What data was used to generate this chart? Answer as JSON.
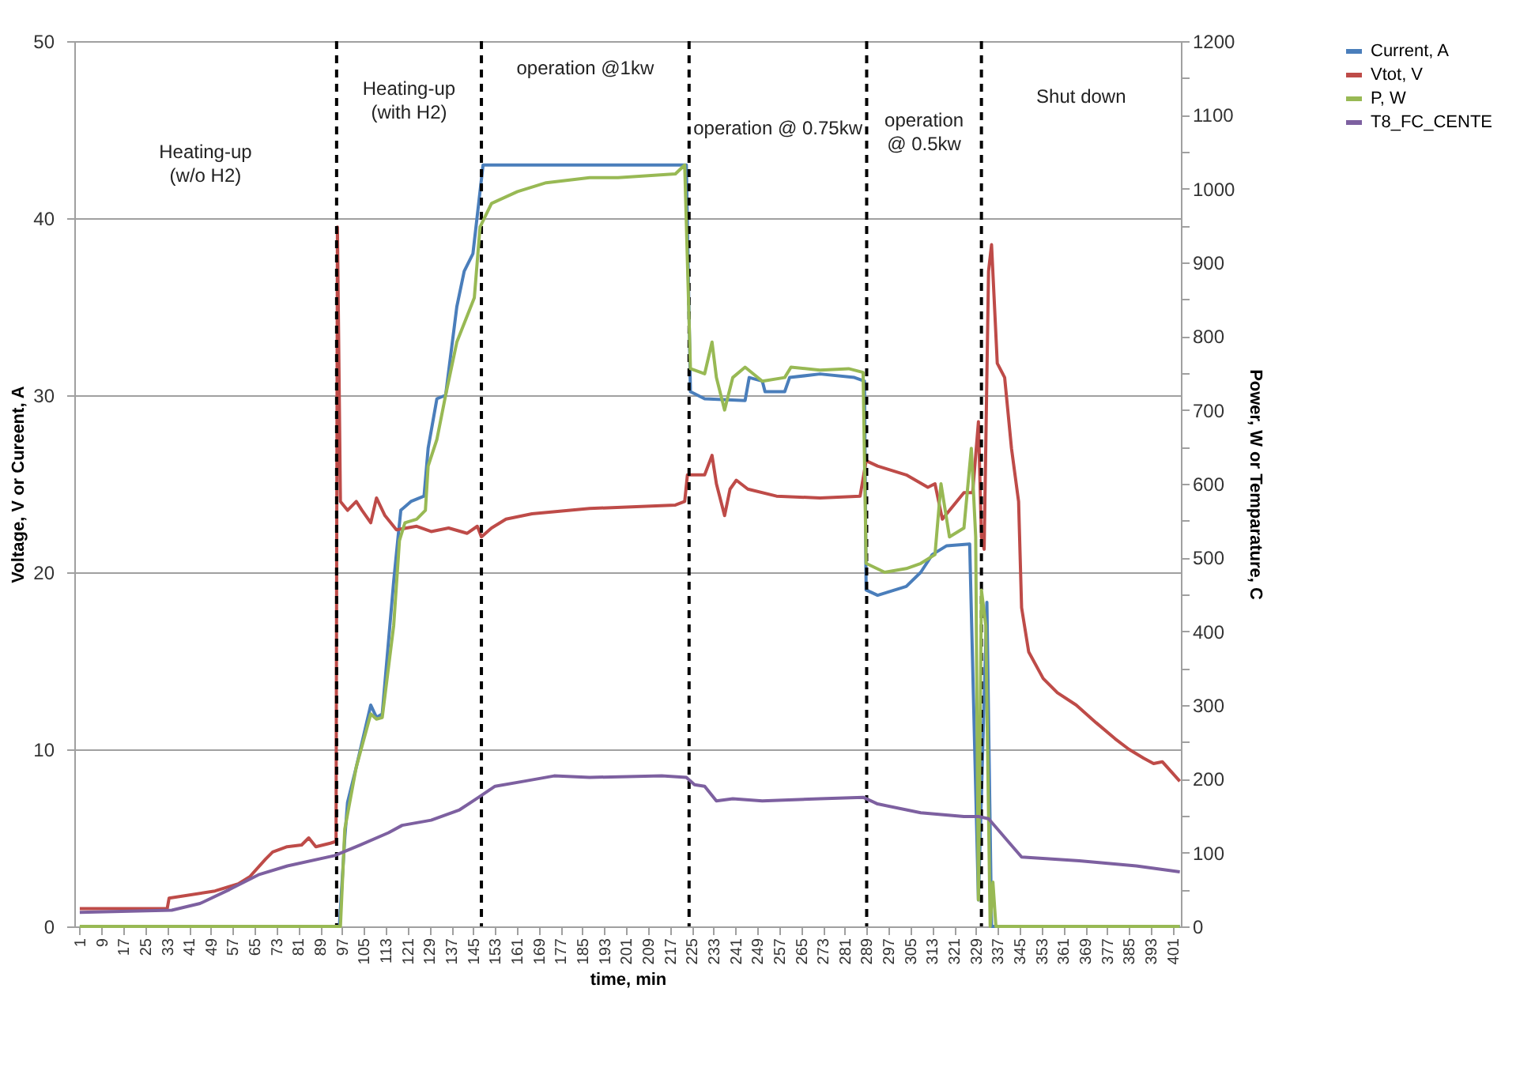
{
  "chart_data": {
    "type": "line",
    "xlabel": "time, min",
    "ylabel": "Voltage, V or Cureent, A",
    "y2label": "Power, W or Temparature, C",
    "xlim": [
      -1,
      404
    ],
    "xticks": [
      1,
      9,
      17,
      25,
      33,
      41,
      49,
      57,
      65,
      73,
      81,
      89,
      97,
      105,
      113,
      121,
      129,
      137,
      145,
      153,
      161,
      169,
      177,
      185,
      193,
      201,
      209,
      217,
      225,
      233,
      241,
      249,
      257,
      265,
      273,
      281,
      289,
      297,
      305,
      313,
      321,
      329,
      337,
      345,
      353,
      361,
      369,
      377,
      385,
      393,
      401
    ],
    "ylim": [
      0,
      50
    ],
    "yticks": [
      0,
      10,
      20,
      30,
      40,
      50
    ],
    "y2lim": [
      0,
      1200
    ],
    "y2ticks": [
      0,
      {
        "value": 50,
        "label": null
      },
      100,
      {
        "value": 150,
        "label": null
      },
      200,
      {
        "value": 250,
        "label": null
      },
      300,
      {
        "value": 350,
        "label": null
      },
      400,
      {
        "value": 450,
        "label": null
      },
      500,
      {
        "value": 550,
        "label": null
      },
      600,
      {
        "value": 650,
        "label": null
      },
      700,
      {
        "value": 750,
        "label": null
      },
      800,
      {
        "value": 850,
        "label": null
      },
      900,
      {
        "value": 950,
        "label": null
      },
      1000,
      {
        "value": 1050,
        "label": null
      },
      1100,
      {
        "value": 1150,
        "label": null
      },
      1200
    ],
    "grid": "y",
    "legend": "right",
    "line_style": "solid",
    "marker": "none",
    "series": [
      {
        "name": "Current, A",
        "color": "#4a7ebb",
        "x": [
          1,
          96,
          98,
          99,
          102.2,
          107.5,
          109.6,
          111.7,
          115.9,
          117.5,
          118.5,
          122.2,
          127,
          128.5,
          131.7,
          134.9,
          139,
          141.7,
          144.9,
          148.6,
          223,
          224.5,
          229.7,
          244.5,
          246,
          250.8,
          251.8,
          259,
          260.8,
          271.9,
          284.5,
          288.2,
          288.8,
          293,
          303.5,
          308.8,
          313,
          318.3,
          326.7,
          329.9,
          333,
          334.7,
          403.6
        ],
        "values": [
          0,
          0,
          5,
          7,
          9,
          12.5,
          11.8,
          12,
          19.5,
          22,
          23.5,
          24,
          24.3,
          27,
          29.8,
          30,
          35,
          37,
          38,
          43,
          43,
          30.2,
          29.8,
          29.7,
          31,
          30.8,
          30.2,
          30.2,
          31,
          31.2,
          31,
          30.8,
          19,
          18.7,
          19.2,
          20,
          21,
          21.5,
          21.6,
          1.5,
          18.3,
          0,
          0
        ]
      },
      {
        "name": "Vtot, V",
        "color": "#be4b48",
        "x": [
          1,
          33,
          33.7,
          50.5,
          59,
          63.2,
          69,
          71.6,
          76.9,
          82.2,
          84.8,
          87.4,
          92.7,
          94.8,
          95.3,
          96.4,
          99,
          102.2,
          104.3,
          107.5,
          109.6,
          112.7,
          114.8,
          116.9,
          124.3,
          129.6,
          136,
          142.8,
          146.5,
          148,
          151.7,
          157,
          166.5,
          187.6,
          219,
          222.4,
          223.4,
          229.7,
          232.4,
          234,
          237,
          239,
          241.3,
          245.5,
          256,
          271.9,
          286.6,
          288.8,
          293,
          303.5,
          311.4,
          314,
          316.7,
          324.6,
          327.8,
          329.9,
          331,
          332,
          333.6,
          334.7,
          336.8,
          339.5,
          342,
          344.6,
          345.7,
          348.3,
          353.6,
          358.8,
          365.7,
          373,
          379.9,
          385,
          390.4,
          394,
          397.2,
          403.6
        ],
        "values": [
          1,
          1,
          1.6,
          2,
          2.4,
          2.8,
          3.8,
          4.2,
          4.5,
          4.6,
          5,
          4.5,
          4.7,
          4.8,
          39.5,
          24,
          23.5,
          24,
          23.5,
          22.8,
          24.2,
          23.2,
          22.8,
          22.4,
          22.6,
          22.3,
          22.5,
          22.2,
          22.6,
          22,
          22.5,
          23,
          23.3,
          23.6,
          23.8,
          24,
          25.5,
          25.5,
          26.6,
          25,
          23.2,
          24.7,
          25.2,
          24.7,
          24.3,
          24.2,
          24.3,
          26.3,
          26,
          25.5,
          24.8,
          25,
          23,
          24.5,
          24.5,
          28.5,
          22,
          21.3,
          37,
          38.5,
          31.8,
          31,
          27,
          24,
          18,
          15.5,
          14,
          13.2,
          12.5,
          11.5,
          10.6,
          10,
          9.5,
          9.2,
          9.3,
          8.2
        ]
      },
      {
        "name": "P, W",
        "color": "#98b954",
        "axis": "y2",
        "x": [
          1,
          96.4,
          98,
          102.2,
          107.5,
          109.6,
          111.7,
          115.9,
          118,
          120,
          124.3,
          127.5,
          128.5,
          131.7,
          134.9,
          139,
          145.4,
          147.5,
          151.7,
          161.2,
          171.7,
          187.6,
          198,
          219,
          222.4,
          224.5,
          229.7,
          232.4,
          234,
          237,
          240,
          244.5,
          250.8,
          259,
          261.3,
          271.9,
          282.4,
          287.7,
          288.8,
          295.6,
          303.5,
          308.8,
          314,
          316.2,
          319.3,
          324.6,
          327.3,
          328.9,
          329.9,
          331,
          332.6,
          334.2,
          335.2,
          336.3,
          403.6
        ],
        "values": [
          0,
          0,
          132,
          216,
          288,
          281,
          283,
          408,
          523,
          547,
          552,
          564,
          624,
          660,
          720,
          792,
          852,
          948,
          980,
          996,
          1008,
          1015,
          1015,
          1020,
          1032,
          756,
          749,
          792,
          744,
          700,
          744,
          758,
          739,
          744,
          758,
          754,
          756,
          751,
          492,
          480,
          485,
          492,
          504,
          600,
          528,
          540,
          648,
          528,
          36,
          456,
          408,
          0,
          60,
          0,
          0
        ]
      },
      {
        "name": "T8_FC_CENTE",
        "color": "#7d60a0",
        "axis": "y2",
        "x": [
          1,
          34.7,
          45,
          55.8,
          66.4,
          77,
          94.3,
          103.4,
          114,
          119,
          129.6,
          140,
          147,
          153,
          164,
          174.6,
          187.6,
          214,
          223,
          226,
          229.7,
          234,
          240,
          250.8,
          271.9,
          287.7,
          293,
          308.8,
          324.6,
          329.9,
          333.6,
          345.7,
          366.8,
          387.7,
          403.6
        ],
        "values": [
          19,
          22,
          31,
          50,
          70,
          82,
          96,
          110,
          127,
          137,
          144,
          158,
          175,
          190,
          197,
          204,
          202,
          204,
          202,
          192,
          190,
          170,
          173,
          170,
          173,
          175,
          166,
          154,
          149,
          149,
          146,
          94,
          89,
          82,
          74
        ]
      }
    ],
    "ref_lines": [
      {
        "axis": "x",
        "value": 95,
        "color": "#000000",
        "line_style": "dashed"
      },
      {
        "axis": "x",
        "value": 148,
        "color": "#000000",
        "line_style": "dashed"
      },
      {
        "axis": "x",
        "value": 224,
        "color": "#000000",
        "line_style": "dashed"
      },
      {
        "axis": "x",
        "value": 289,
        "color": "#000000",
        "line_style": "dashed"
      },
      {
        "axis": "x",
        "value": 331,
        "color": "#000000",
        "line_style": "dashed"
      }
    ],
    "annotations": [
      "Heating-up\n(w/o H2)",
      "Heating-up\n(with H2)",
      "operation @1kw",
      "operation @ 0.75kw",
      "operation\n@ 0.5kw",
      "Shut down"
    ]
  }
}
